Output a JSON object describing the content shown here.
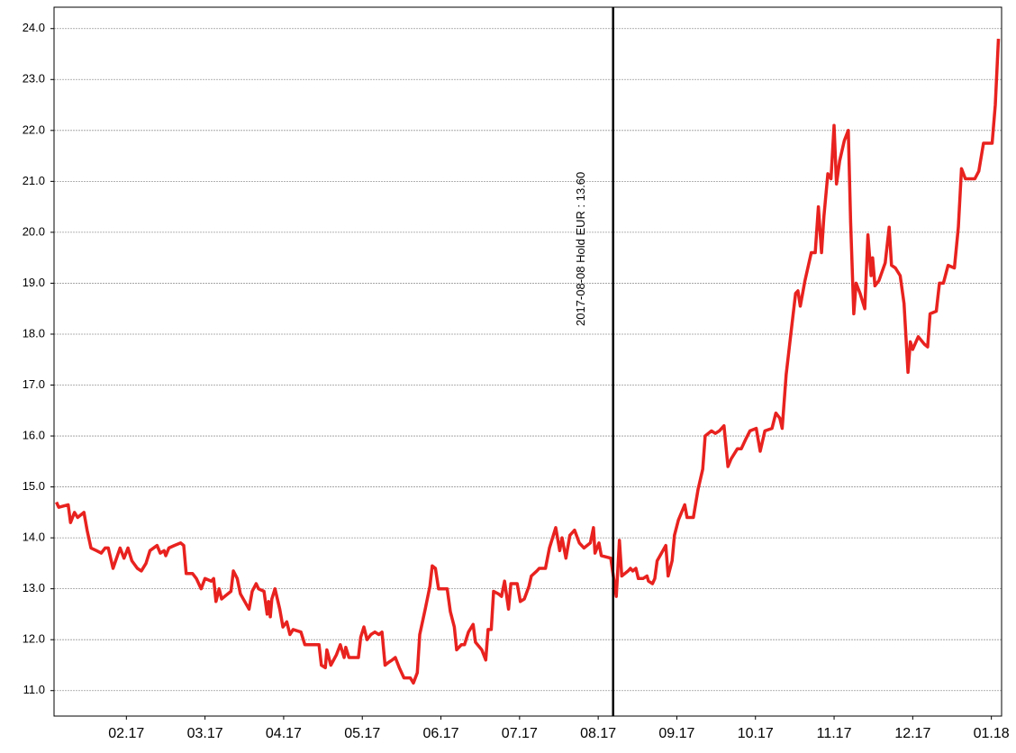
{
  "chart_data": {
    "type": "line",
    "color": "#e8221f",
    "grid": true,
    "xlim": [
      1.08,
      13.13
    ],
    "ylim": [
      10.5,
      24.42
    ],
    "xticks": [
      {
        "value": 2,
        "label": "02.17"
      },
      {
        "value": 3,
        "label": "03.17"
      },
      {
        "value": 4,
        "label": "04.17"
      },
      {
        "value": 5,
        "label": "05.17"
      },
      {
        "value": 6,
        "label": "06.17"
      },
      {
        "value": 7,
        "label": "07.17"
      },
      {
        "value": 8,
        "label": "08.17"
      },
      {
        "value": 9,
        "label": "09.17"
      },
      {
        "value": 10,
        "label": "10.17"
      },
      {
        "value": 11,
        "label": "11.17"
      },
      {
        "value": 12,
        "label": "12.17"
      },
      {
        "value": 13,
        "label": "01.18"
      }
    ],
    "yticks": [
      {
        "value": 11,
        "label": "11.0"
      },
      {
        "value": 12,
        "label": "12.0"
      },
      {
        "value": 13,
        "label": "13.0"
      },
      {
        "value": 14,
        "label": "14.0"
      },
      {
        "value": 15,
        "label": "15.0"
      },
      {
        "value": 16,
        "label": "16.0"
      },
      {
        "value": 17,
        "label": "17.0"
      },
      {
        "value": 18,
        "label": "18.0"
      },
      {
        "value": 19,
        "label": "19.0"
      },
      {
        "value": 20,
        "label": "20.0"
      },
      {
        "value": 21,
        "label": "21.0"
      },
      {
        "value": 22,
        "label": "22.0"
      },
      {
        "value": 23,
        "label": "23.0"
      },
      {
        "value": 24,
        "label": "24.0"
      }
    ],
    "annotation": {
      "x": 8.19,
      "text": "2017-08-08 Hold EUR : 13.60"
    },
    "x": [
      1.11,
      1.14,
      1.26,
      1.29,
      1.34,
      1.38,
      1.46,
      1.5,
      1.55,
      1.62,
      1.68,
      1.73,
      1.77,
      1.83,
      1.92,
      1.97,
      2.02,
      2.07,
      2.14,
      2.19,
      2.25,
      2.3,
      2.39,
      2.43,
      2.48,
      2.5,
      2.54,
      2.61,
      2.69,
      2.73,
      2.76,
      2.84,
      2.89,
      2.95,
      3.0,
      3.08,
      3.11,
      3.14,
      3.18,
      3.21,
      3.33,
      3.36,
      3.41,
      3.45,
      3.56,
      3.6,
      3.65,
      3.68,
      3.75,
      3.79,
      3.81,
      3.83,
      3.85,
      3.89,
      3.95,
      3.99,
      4.04,
      4.08,
      4.12,
      4.22,
      4.27,
      4.32,
      4.45,
      4.48,
      4.53,
      4.55,
      4.6,
      4.67,
      4.72,
      4.77,
      4.79,
      4.83,
      4.95,
      4.98,
      5.02,
      5.06,
      5.11,
      5.16,
      5.21,
      5.25,
      5.29,
      5.33,
      5.38,
      5.42,
      5.47,
      5.53,
      5.61,
      5.65,
      5.7,
      5.73,
      5.8,
      5.86,
      5.89,
      5.93,
      5.97,
      6.08,
      6.12,
      6.17,
      6.2,
      6.26,
      6.3,
      6.35,
      6.41,
      6.44,
      6.52,
      6.57,
      6.6,
      6.64,
      6.67,
      6.73,
      6.77,
      6.81,
      6.86,
      6.89,
      6.97,
      7.01,
      7.06,
      7.12,
      7.15,
      7.22,
      7.25,
      7.33,
      7.38,
      7.46,
      7.51,
      7.54,
      7.59,
      7.64,
      7.7,
      7.76,
      7.82,
      7.9,
      7.94,
      7.96,
      8.01,
      8.04,
      8.16,
      8.23,
      8.25,
      8.27,
      8.3,
      8.38,
      8.41,
      8.44,
      8.48,
      8.51,
      8.57,
      8.62,
      8.64,
      8.69,
      8.72,
      8.75,
      8.86,
      8.89,
      8.94,
      8.97,
      9.02,
      9.1,
      9.13,
      9.21,
      9.27,
      9.33,
      9.36,
      9.44,
      9.49,
      9.54,
      9.6,
      9.65,
      9.69,
      9.77,
      9.82,
      9.88,
      9.93,
      10.01,
      10.06,
      10.12,
      10.21,
      10.26,
      10.31,
      10.34,
      10.39,
      10.45,
      10.51,
      10.54,
      10.57,
      10.63,
      10.71,
      10.76,
      10.8,
      10.84,
      10.87,
      10.92,
      10.96,
      11.0,
      11.03,
      11.07,
      11.13,
      11.18,
      11.21,
      11.25,
      11.28,
      11.33,
      11.39,
      11.43,
      11.47,
      11.49,
      11.52,
      11.57,
      11.65,
      11.7,
      11.73,
      11.78,
      11.84,
      11.89,
      11.94,
      11.97,
      12.0,
      12.07,
      12.15,
      12.19,
      12.22,
      12.3,
      12.34,
      12.39,
      12.45,
      12.53,
      12.58,
      12.62,
      12.67,
      12.79,
      12.84,
      12.9,
      13.01,
      13.05,
      13.09
    ],
    "values": [
      14.7,
      14.6,
      14.65,
      14.3,
      14.5,
      14.4,
      14.5,
      14.15,
      13.8,
      13.75,
      13.7,
      13.8,
      13.8,
      13.4,
      13.8,
      13.6,
      13.8,
      13.55,
      13.4,
      13.35,
      13.5,
      13.75,
      13.85,
      13.7,
      13.75,
      13.65,
      13.8,
      13.85,
      13.9,
      13.85,
      13.3,
      13.3,
      13.2,
      13.0,
      13.2,
      13.15,
      13.2,
      12.75,
      13.0,
      12.8,
      12.95,
      13.35,
      13.2,
      12.9,
      12.6,
      12.95,
      13.1,
      13.0,
      12.95,
      12.5,
      12.75,
      12.45,
      12.8,
      13.0,
      12.6,
      12.25,
      12.35,
      12.1,
      12.2,
      12.15,
      11.9,
      11.9,
      11.9,
      11.5,
      11.45,
      11.8,
      11.5,
      11.7,
      11.9,
      11.65,
      11.85,
      11.65,
      11.65,
      12.05,
      12.25,
      12.0,
      12.1,
      12.15,
      12.1,
      12.15,
      11.5,
      11.55,
      11.6,
      11.65,
      11.45,
      11.25,
      11.25,
      11.15,
      11.35,
      12.1,
      12.6,
      13.05,
      13.45,
      13.4,
      13.0,
      13.0,
      12.55,
      12.25,
      11.8,
      11.9,
      11.9,
      12.15,
      12.3,
      11.95,
      11.8,
      11.6,
      12.2,
      12.2,
      12.95,
      12.9,
      12.85,
      13.15,
      12.6,
      13.1,
      13.1,
      12.75,
      12.8,
      13.05,
      13.25,
      13.35,
      13.4,
      13.4,
      13.8,
      14.2,
      13.75,
      14.0,
      13.6,
      14.05,
      14.15,
      13.9,
      13.8,
      13.9,
      14.2,
      13.7,
      13.9,
      13.65,
      13.6,
      12.85,
      13.4,
      13.95,
      13.25,
      13.35,
      13.4,
      13.35,
      13.4,
      13.2,
      13.2,
      13.25,
      13.15,
      13.1,
      13.2,
      13.55,
      13.85,
      13.25,
      13.55,
      14.05,
      14.35,
      14.65,
      14.4,
      14.4,
      14.95,
      15.35,
      16.0,
      16.1,
      16.05,
      16.1,
      16.2,
      15.4,
      15.55,
      15.75,
      15.75,
      15.95,
      16.1,
      16.15,
      15.7,
      16.1,
      16.15,
      16.45,
      16.35,
      16.15,
      17.2,
      18.0,
      18.8,
      18.85,
      18.55,
      19.05,
      19.6,
      19.6,
      20.5,
      19.6,
      20.3,
      21.15,
      21.05,
      22.1,
      20.95,
      21.4,
      21.8,
      22.0,
      20.2,
      18.4,
      19.0,
      18.8,
      18.5,
      19.95,
      19.15,
      19.5,
      18.95,
      19.05,
      19.4,
      20.1,
      19.35,
      19.3,
      19.15,
      18.6,
      17.25,
      17.85,
      17.7,
      17.95,
      17.8,
      17.75,
      18.4,
      18.45,
      19.0,
      19.0,
      19.35,
      19.3,
      20.1,
      21.25,
      21.05,
      21.05,
      21.2,
      21.75,
      21.75,
      22.5,
      23.8
    ]
  }
}
